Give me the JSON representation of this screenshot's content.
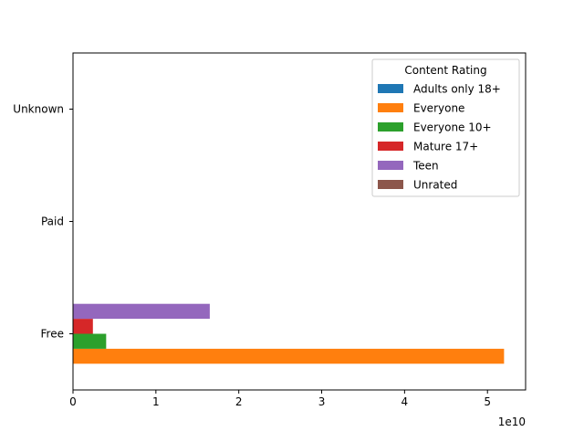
{
  "chart_data": {
    "type": "bar",
    "orientation": "horizontal",
    "categories": [
      "Free",
      "Paid",
      "Unknown"
    ],
    "series": [
      {
        "name": "Adults only 18+",
        "color": "#1f77b4",
        "values": [
          0,
          0,
          0
        ]
      },
      {
        "name": "Everyone",
        "color": "#ff7f0e",
        "values": [
          52000000000,
          0,
          0
        ]
      },
      {
        "name": "Everyone 10+",
        "color": "#2ca02c",
        "values": [
          4000000000,
          0,
          0
        ]
      },
      {
        "name": "Mature 17+",
        "color": "#d62728",
        "values": [
          2400000000,
          0,
          0
        ]
      },
      {
        "name": "Teen",
        "color": "#9467bd",
        "values": [
          16500000000,
          0,
          0
        ]
      },
      {
        "name": "Unrated",
        "color": "#8c564b",
        "values": [
          0,
          0,
          0
        ]
      }
    ],
    "xlim": [
      0,
      54600000000
    ],
    "x_ticks": [
      0,
      10000000000,
      20000000000,
      30000000000,
      40000000000,
      50000000000
    ],
    "x_tick_labels": [
      "0",
      "1",
      "2",
      "3",
      "4",
      "5"
    ],
    "x_offset_label": "1e10",
    "legend": {
      "title": "Content Rating",
      "placement": "upper right"
    },
    "grid": false
  }
}
